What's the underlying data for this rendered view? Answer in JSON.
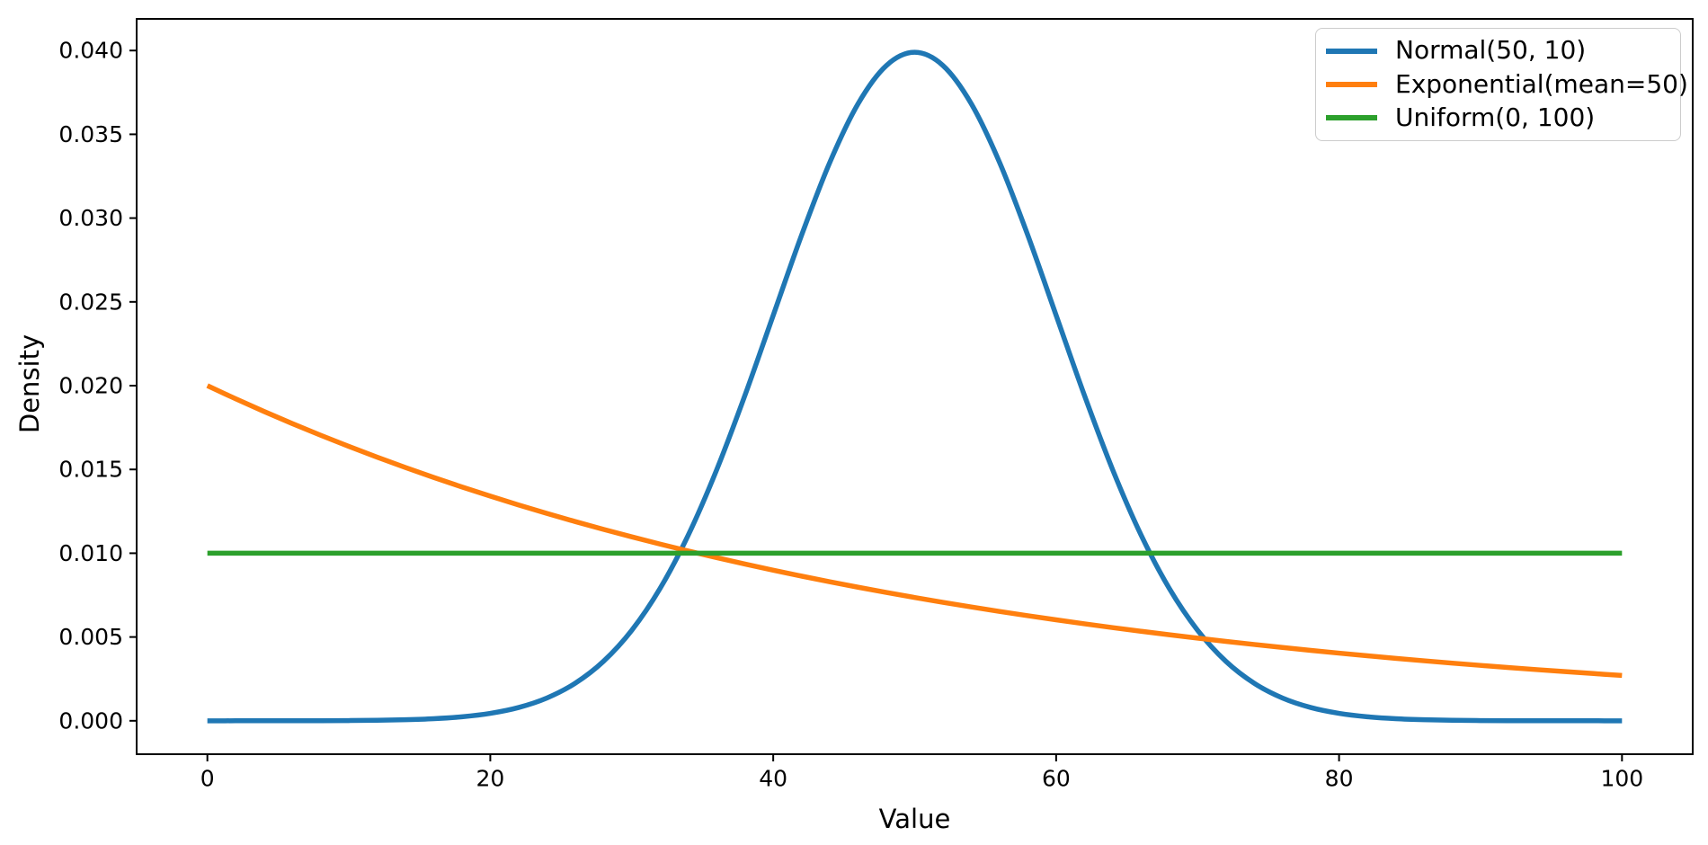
{
  "chart_data": {
    "type": "line",
    "title": "",
    "xlabel": "Value",
    "ylabel": "Density",
    "xlim": [
      -5,
      105
    ],
    "ylim": [
      -0.0019947,
      0.0418889
    ],
    "grid": false,
    "legend_position": "upper right",
    "background_color": "#ffffff",
    "spine_color": "#000000",
    "x_ticks": {
      "values": [
        0,
        20,
        40,
        60,
        80,
        100
      ],
      "labels": [
        "0",
        "20",
        "40",
        "60",
        "80",
        "100"
      ]
    },
    "y_ticks": {
      "values": [
        0.0,
        0.005,
        0.01,
        0.015,
        0.02,
        0.025,
        0.03,
        0.035,
        0.04
      ],
      "labels": [
        "0.000",
        "0.005",
        "0.010",
        "0.015",
        "0.020",
        "0.025",
        "0.030",
        "0.035",
        "0.040"
      ]
    },
    "series": [
      {
        "name": "Normal(50, 10)",
        "color": "#1f77b4",
        "x": [
          0,
          2,
          4,
          6,
          8,
          10,
          12,
          14,
          16,
          18,
          20,
          22,
          24,
          26,
          28,
          30,
          32,
          34,
          36,
          38,
          40,
          42,
          44,
          46,
          48,
          50,
          52,
          54,
          56,
          58,
          60,
          62,
          64,
          66,
          68,
          70,
          72,
          74,
          76,
          78,
          80,
          82,
          84,
          86,
          88,
          90,
          92,
          94,
          96,
          98,
          100
        ],
        "y": [
          1e-07,
          4e-07,
          1e-06,
          2.5e-06,
          5.9e-06,
          1.34e-05,
          2.91e-05,
          6.1e-05,
          0.0001232,
          0.0002384,
          0.0004432,
          0.0007915,
          0.0013583,
          0.0022395,
          0.0035475,
          0.0053991,
          0.007895,
          0.0110921,
          0.0149727,
          0.0194186,
          0.0241971,
          0.0289692,
          0.0333225,
          0.036827,
          0.0391043,
          0.0398942,
          0.0391043,
          0.036827,
          0.0333225,
          0.0289692,
          0.0241971,
          0.0194186,
          0.0149727,
          0.0110921,
          0.007895,
          0.0053991,
          0.0035475,
          0.0022395,
          0.0013583,
          0.0007915,
          0.0004432,
          0.0002384,
          0.0001232,
          6.1e-05,
          2.91e-05,
          1.34e-05,
          5.9e-06,
          2.5e-06,
          1e-06,
          4e-07,
          1e-07
        ]
      },
      {
        "name": "Exponential(mean=50)",
        "color": "#ff7f0e",
        "x": [
          0,
          2,
          4,
          6,
          8,
          10,
          12,
          14,
          16,
          18,
          20,
          22,
          24,
          26,
          28,
          30,
          32,
          34,
          36,
          38,
          40,
          42,
          44,
          46,
          48,
          50,
          52,
          54,
          56,
          58,
          60,
          62,
          64,
          66,
          68,
          70,
          72,
          74,
          76,
          78,
          80,
          82,
          84,
          86,
          88,
          90,
          92,
          94,
          96,
          98,
          100
        ],
        "y": [
          0.02,
          0.0192158,
          0.0184623,
          0.0177384,
          0.0170429,
          0.0163746,
          0.0157326,
          0.0151157,
          0.014523,
          0.0139535,
          0.0134064,
          0.0128807,
          0.0123757,
          0.0118904,
          0.0114242,
          0.0109762,
          0.0105458,
          0.0101323,
          0.009735,
          0.0093533,
          0.0089866,
          0.0086342,
          0.0082957,
          0.0079704,
          0.0076579,
          0.0073576,
          0.0070691,
          0.0067919,
          0.0065256,
          0.0062697,
          0.0060239,
          0.0057877,
          0.0055607,
          0.0053427,
          0.0051332,
          0.0049319,
          0.0047386,
          0.0045528,
          0.0043742,
          0.0042027,
          0.0040379,
          0.0038796,
          0.0037275,
          0.0035813,
          0.0034409,
          0.003306,
          0.0031763,
          0.0030518,
          0.0029321,
          0.0028172,
          0.0027067
        ]
      },
      {
        "name": "Uniform(0, 100)",
        "color": "#2ca02c",
        "x": [
          0,
          100
        ],
        "y": [
          0.01,
          0.01
        ]
      }
    ]
  }
}
